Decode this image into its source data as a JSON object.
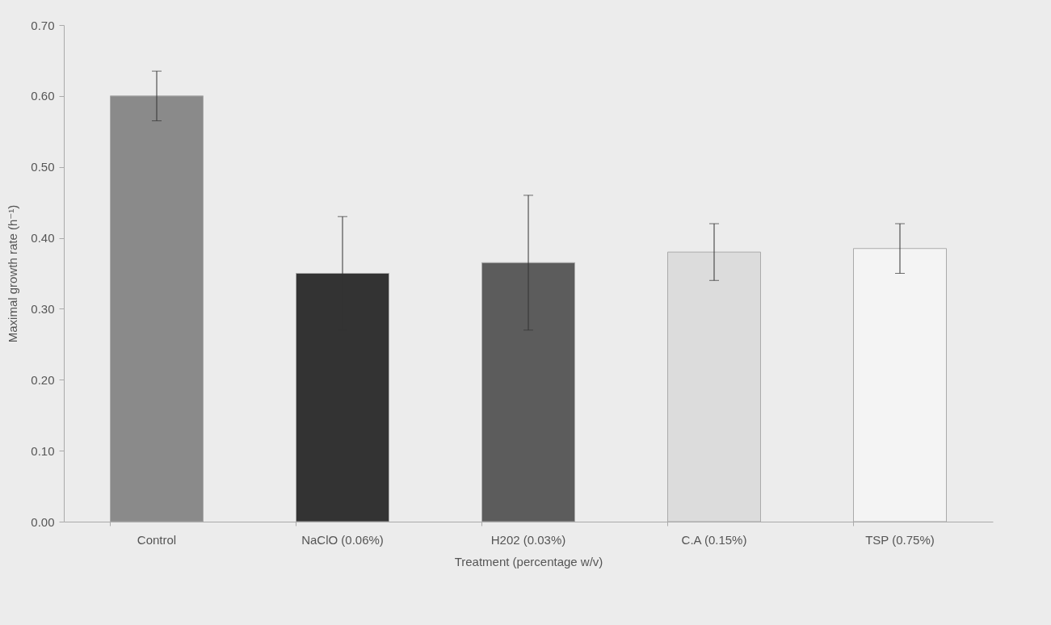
{
  "chart_data": {
    "type": "bar",
    "xlabel": "Treatment (percentage w/v)",
    "ylabel": "Maximal growth rate (h⁻¹)",
    "categories": [
      "Control",
      "NaClO (0.06%)",
      "H202 (0.03%)",
      "C.A (0.15%)",
      "TSP (0.75%)"
    ],
    "values": [
      0.6,
      0.35,
      0.365,
      0.38,
      0.385
    ],
    "errors": [
      0.035,
      0.08,
      0.095,
      0.04,
      0.035
    ],
    "colors": [
      "#8a8a8a",
      "#333333",
      "#5c5c5c",
      "#dcdcdc",
      "#f4f4f4"
    ],
    "ylim": [
      0,
      0.7
    ],
    "yticks": [
      {
        "value": 0,
        "label": "0.00"
      },
      {
        "value": 0.1,
        "label": "0.10"
      },
      {
        "value": 0.2,
        "label": "0.20"
      },
      {
        "value": 0.3,
        "label": "0.30"
      },
      {
        "value": 0.4,
        "label": "0.40"
      },
      {
        "value": 0.5,
        "label": "0.50"
      },
      {
        "value": 0.6,
        "label": "0.60"
      },
      {
        "value": 0.7,
        "label": "0.70"
      }
    ],
    "grid": false
  }
}
